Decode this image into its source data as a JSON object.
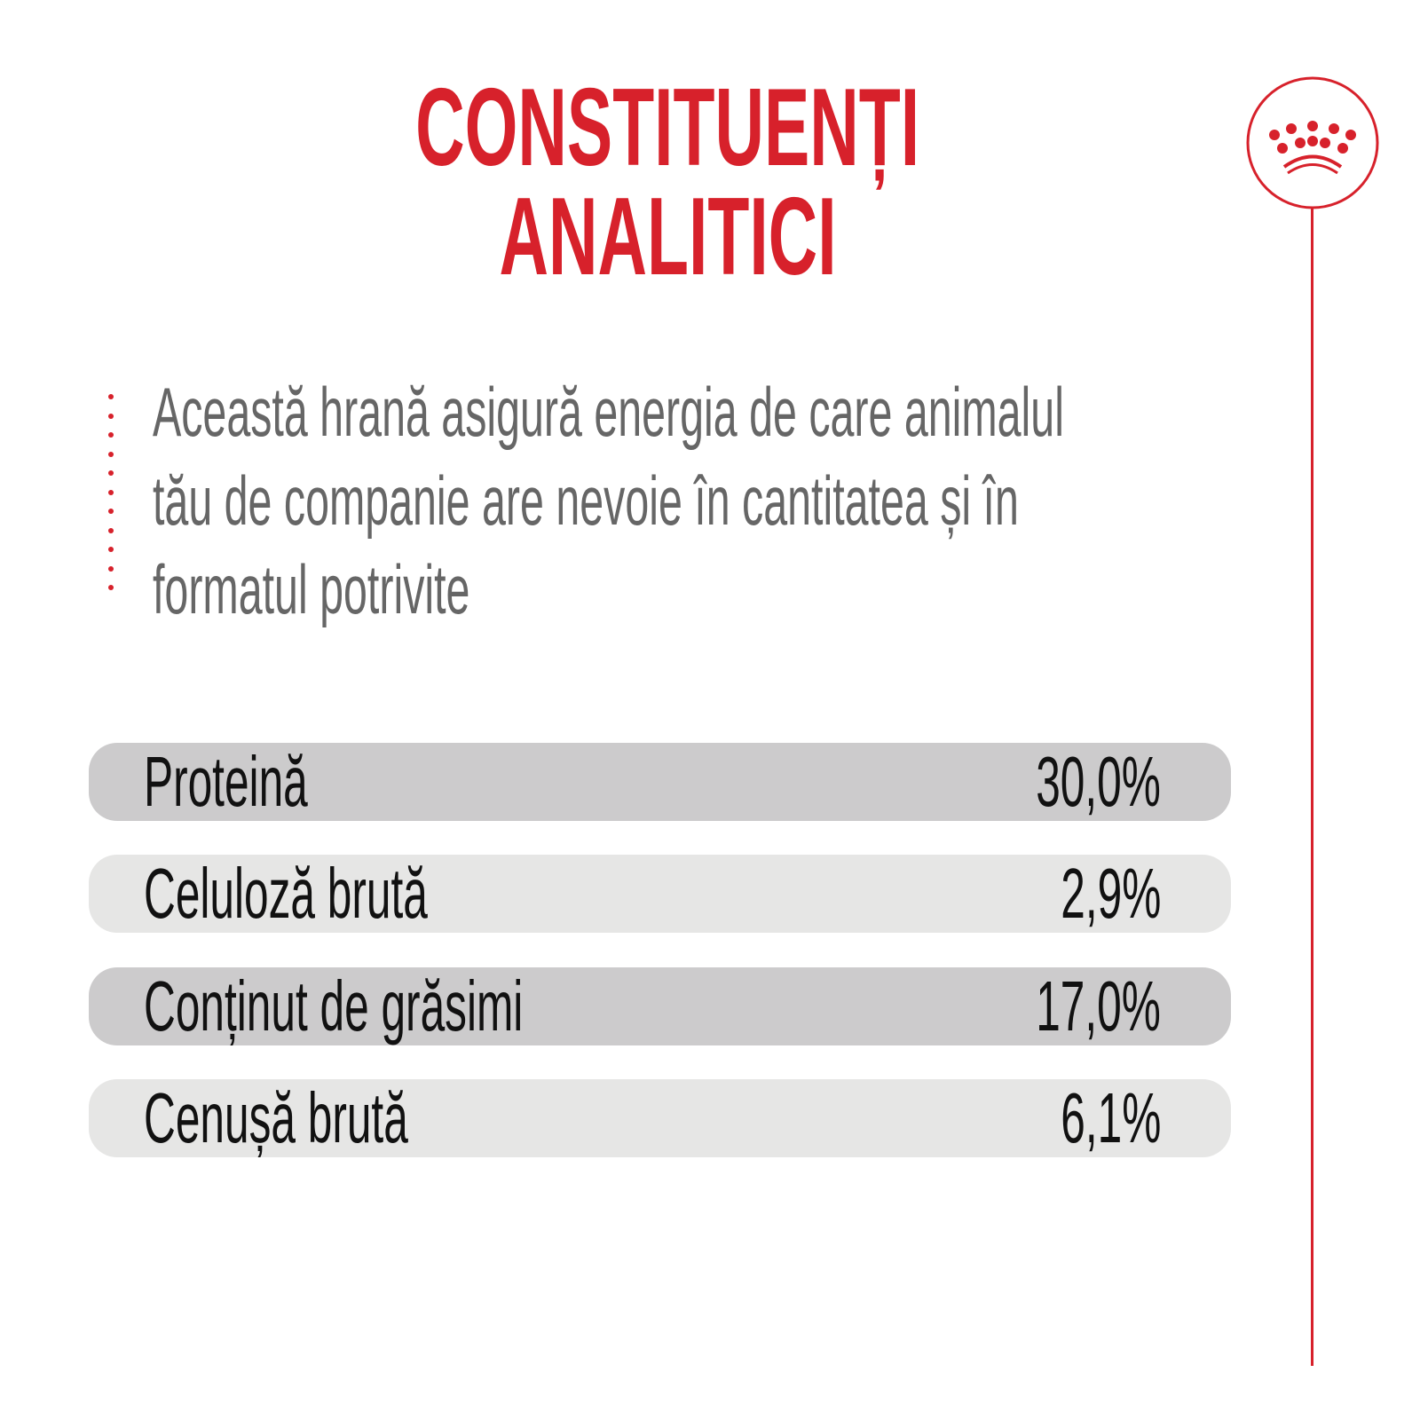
{
  "title": {
    "line1": "CONSTITUENȚI",
    "line2": "ANALITICI"
  },
  "description": {
    "line1": "Această hrană asigură energia de care animalul",
    "line2": "tău de companie are nevoie în cantitatea și în",
    "line3": "formatul potrivite"
  },
  "constituents": [
    {
      "label": "Proteină",
      "value": "30,0%"
    },
    {
      "label": "Celuloză brută",
      "value": "2,9%"
    },
    {
      "label": "Conținut de grăsimi",
      "value": "17,0%"
    },
    {
      "label": "Cenușă brută",
      "value": "6,1%"
    }
  ],
  "logo": {
    "icon": "crown-icon"
  },
  "colors": {
    "accent": "#d7212b",
    "row_dark": "#cccbcc",
    "row_light": "#e6e6e5",
    "text_gray": "#666666"
  }
}
